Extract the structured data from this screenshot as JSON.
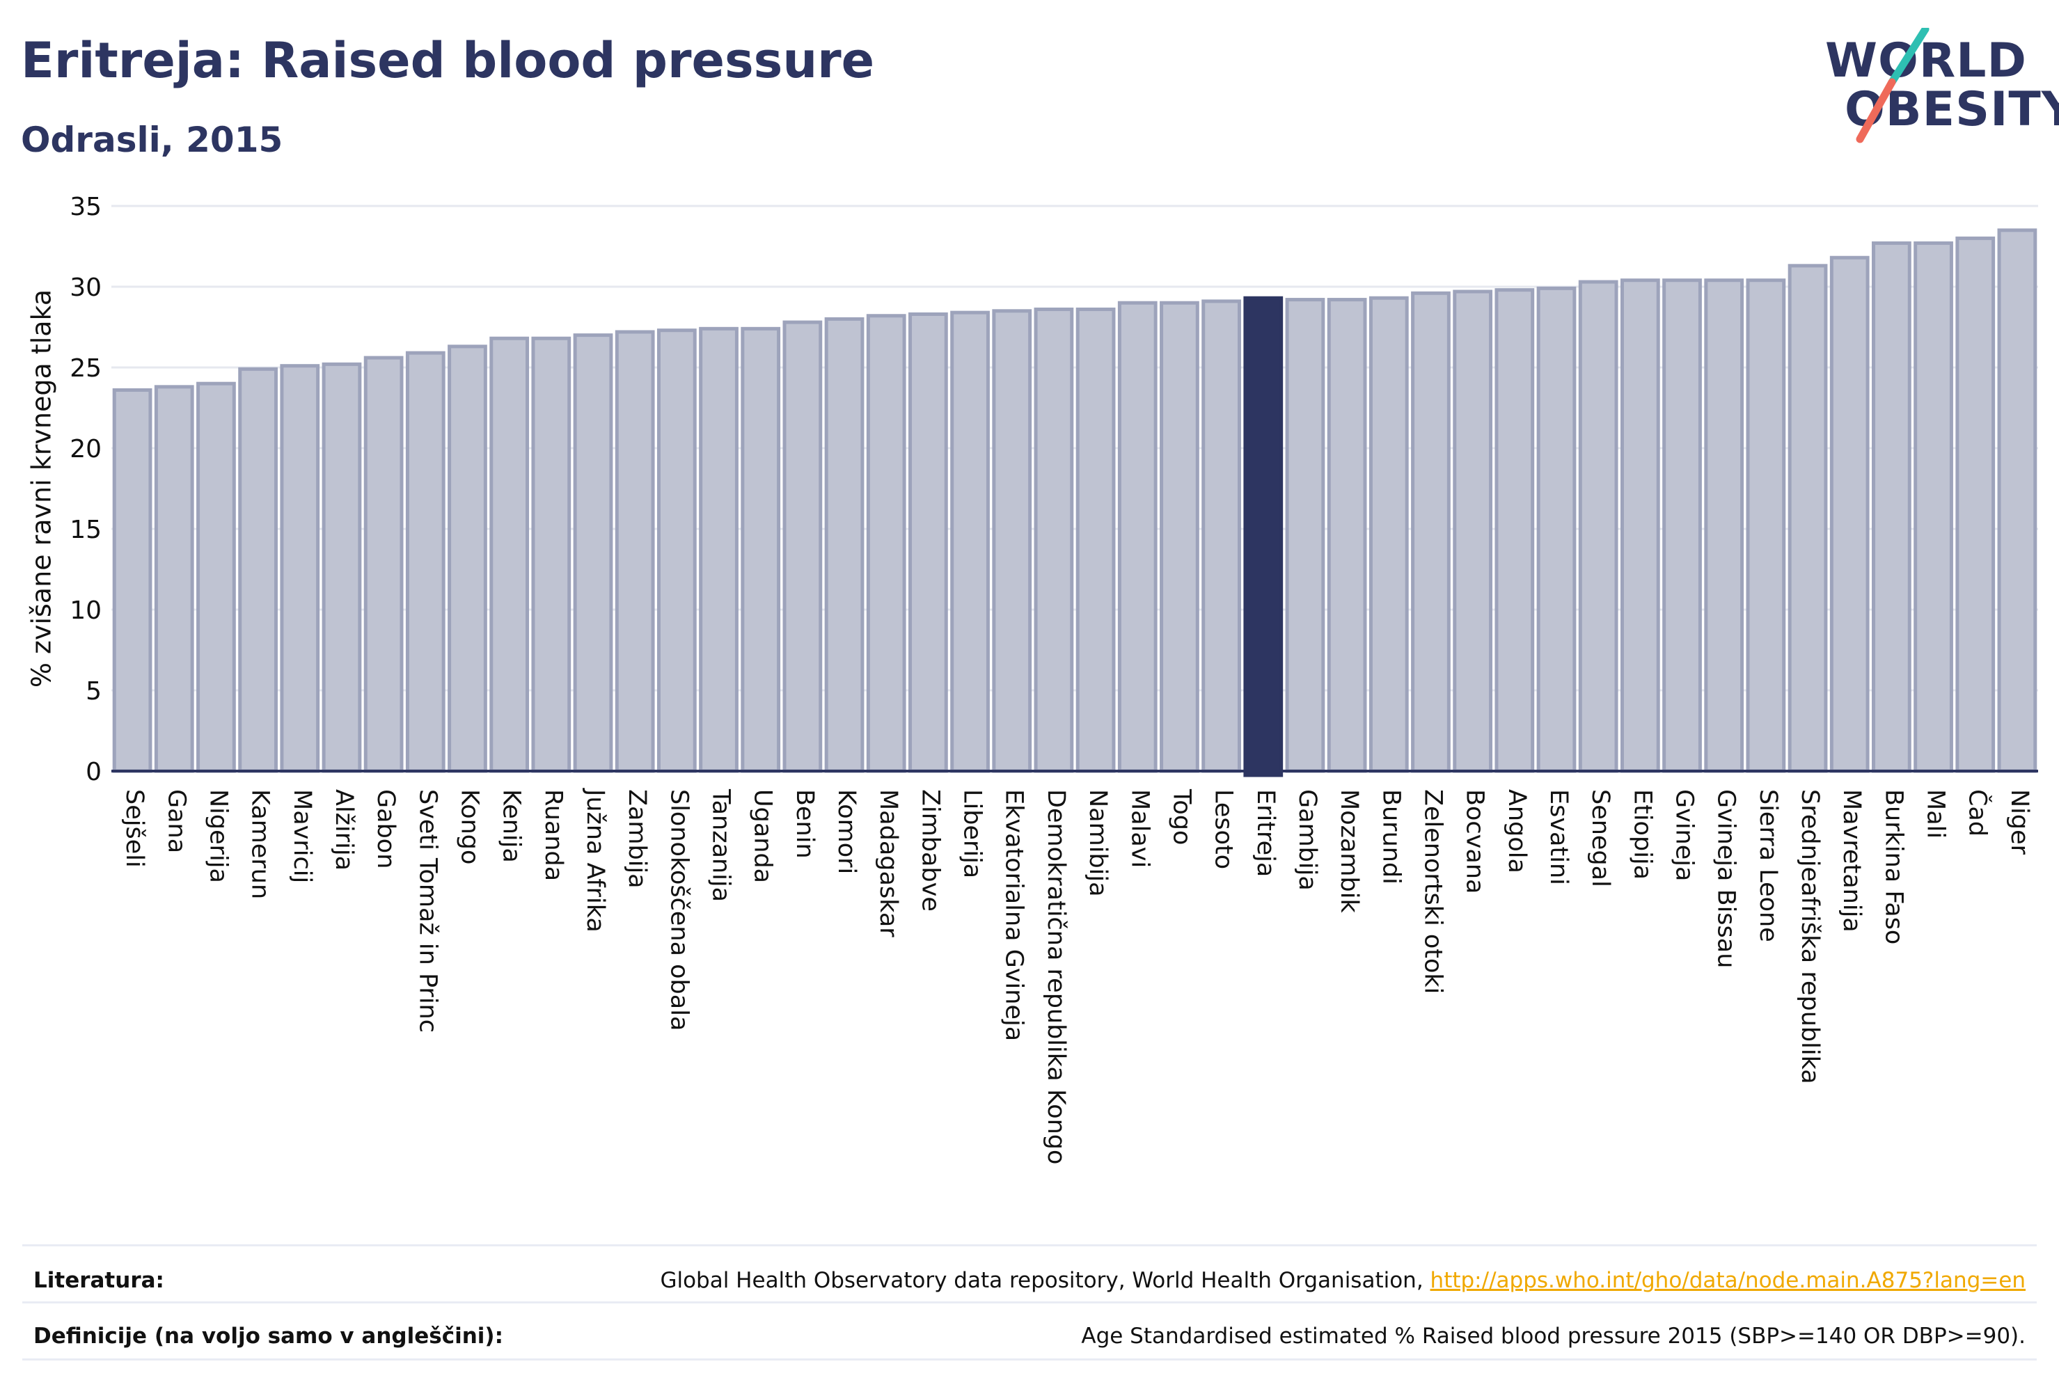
{
  "header": {
    "title": "Eritreja: Raised blood pressure",
    "subtitle": "Odrasli, 2015"
  },
  "logo": {
    "line1": "WORLD",
    "line2": "OBESITY",
    "slash_colors": [
      "#2ebfb2",
      "#ef6a5a"
    ]
  },
  "colors": {
    "bar_fill": "#bfc3d2",
    "bar_stroke": "#9da3bb",
    "highlight": "#2d3561",
    "grid": "#e6e8ef",
    "text": "#111111"
  },
  "chart_data": {
    "type": "bar",
    "title": "Eritreja: Raised blood pressure",
    "subtitle": "Odrasli, 2015",
    "ylabel": "% zvišane ravni krvnega tlaka",
    "xlabel": "",
    "ylim": [
      0,
      35
    ],
    "yticks": [
      0,
      5,
      10,
      15,
      20,
      25,
      30,
      35
    ],
    "grid": true,
    "highlight": "Eritreja",
    "categories": [
      "Sejšeli",
      "Gana",
      "Nigerija",
      "Kamerun",
      "Mavricij",
      "Alžirija",
      "Gabon",
      "Sveti Tomaž in Princ",
      "Kongo",
      "Kenija",
      "Ruanda",
      "Južna Afrika",
      "Zambija",
      "Slonokoščena obala",
      "Tanzanija",
      "Uganda",
      "Benin",
      "Komori",
      "Madagaskar",
      "Zimbabve",
      "Liberija",
      "Ekvatorialna Gvineja",
      "Demokratična republika Kongo",
      "Namibija",
      "Malavi",
      "Togo",
      "Lesoto",
      "Eritreja",
      "Gambija",
      "Mozambik",
      "Burundi",
      "Zelenortski otoki",
      "Bocvana",
      "Angola",
      "Esvatini",
      "Senegal",
      "Etiopija",
      "Gvineja",
      "Gvineja Bissau",
      "Sierra Leone",
      "Srednjeafriška republika",
      "Mavretanija",
      "Burkina Faso",
      "Mali",
      "Čad",
      "Niger"
    ],
    "values": [
      23.6,
      23.8,
      24.0,
      24.9,
      25.1,
      25.2,
      25.6,
      25.9,
      26.3,
      26.8,
      26.8,
      27.0,
      27.2,
      27.3,
      27.4,
      27.4,
      27.8,
      28.0,
      28.2,
      28.3,
      28.4,
      28.5,
      28.6,
      28.6,
      29.0,
      29.0,
      29.1,
      29.3,
      29.2,
      29.2,
      29.3,
      29.6,
      29.7,
      29.8,
      29.9,
      30.3,
      30.4,
      30.4,
      30.4,
      30.4,
      31.3,
      31.8,
      32.7,
      32.7,
      33.0,
      33.5
    ]
  },
  "footer": {
    "sources_label": "Literatura:",
    "sources_text": "Global Health Observatory data repository, World Health Organisation, ",
    "sources_link": "http://apps.who.int/gho/data/node.main.A875?lang=en",
    "definition_label": "Definicije (na voljo samo v angleščini):",
    "definition_text": "Age Standardised estimated % Raised blood pressure 2015 (SBP>=140 OR DBP>=90)."
  }
}
